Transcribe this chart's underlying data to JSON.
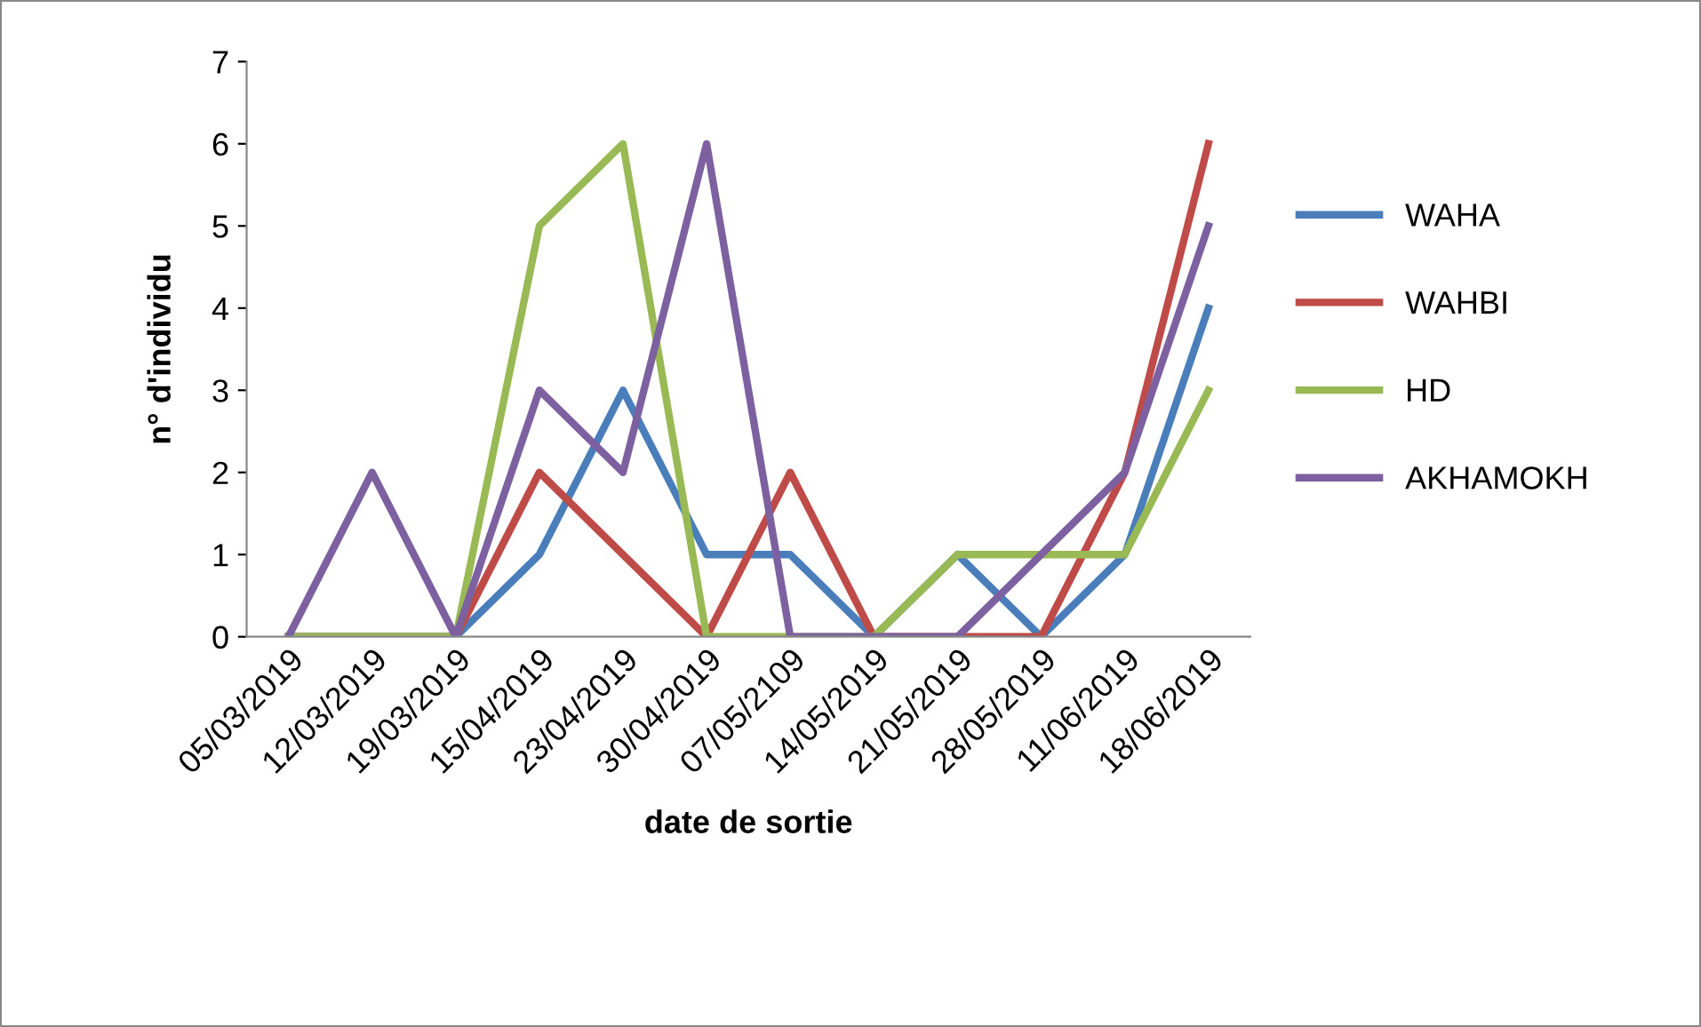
{
  "chart_data": {
    "type": "line",
    "xlabel": "date de sortie",
    "ylabel": "n° d'individu",
    "categories": [
      "05/03/2019",
      "12/03/2019",
      "19/03/2019",
      "15/04/2019",
      "23/04/2019",
      "30/04/2019",
      "07/05/2109",
      "14/05/2019",
      "21/05/2019",
      "28/05/2019",
      "11/06/2019",
      "18/06/2019"
    ],
    "series": [
      {
        "name": "WAHA",
        "color": "#4a7ebb",
        "values": [
          0,
          0,
          0,
          1,
          3,
          1,
          1,
          0,
          1,
          0,
          1,
          4
        ]
      },
      {
        "name": "WAHBI",
        "color": "#be4b48",
        "values": [
          0,
          0,
          0,
          2,
          1,
          0,
          2,
          0,
          0,
          0,
          2,
          6
        ]
      },
      {
        "name": "HD",
        "color": "#98b954",
        "values": [
          0,
          0,
          0,
          5,
          6,
          0,
          0,
          0,
          1,
          1,
          1,
          3
        ]
      },
      {
        "name": "AKHAMOKH",
        "color": "#7d60a0",
        "values": [
          0,
          2,
          0,
          3,
          2,
          6,
          0,
          0,
          0,
          1,
          2,
          5
        ]
      }
    ],
    "ylim": [
      0,
      7
    ],
    "yticks": [
      0,
      1,
      2,
      3,
      4,
      5,
      6,
      7
    ],
    "grid": false,
    "legend": "right",
    "marker": "none",
    "line_style": "solid"
  }
}
